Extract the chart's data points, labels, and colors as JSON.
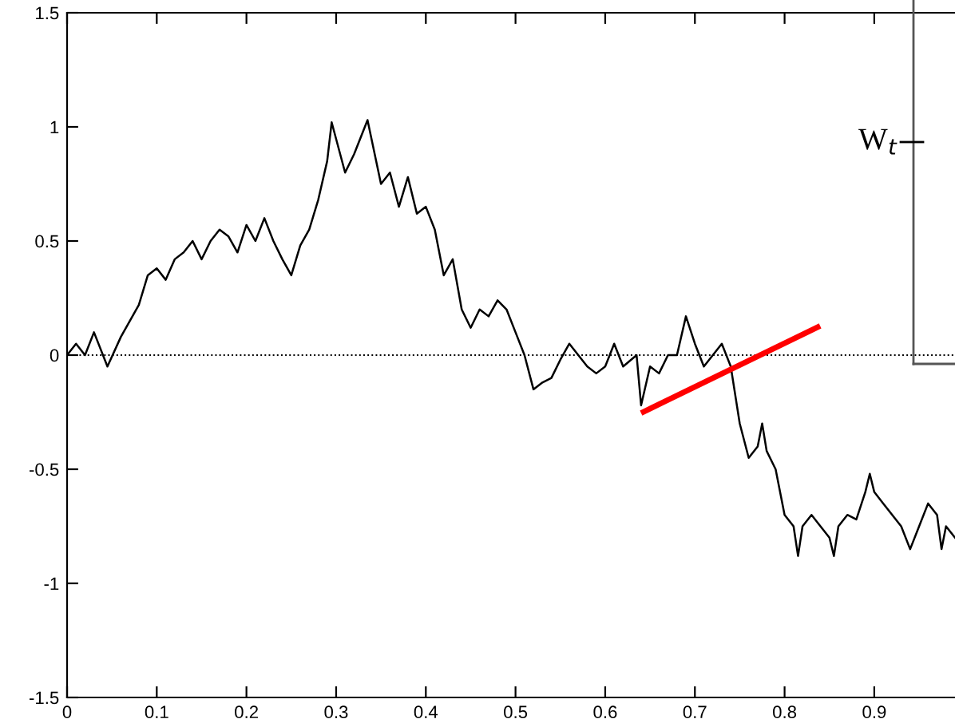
{
  "chart_data": {
    "type": "line",
    "xlim": [
      0,
      0.99
    ],
    "ylim": [
      -1.5,
      1.5
    ],
    "xticks": [
      0,
      0.1,
      0.2,
      0.3,
      0.4,
      0.5,
      0.6,
      0.7,
      0.8,
      0.9
    ],
    "yticks": [
      -1.5,
      -1,
      -0.5,
      0,
      0.5,
      1,
      1.5
    ],
    "grid": false,
    "legend": false,
    "marker": "none",
    "line_style": "solid",
    "ref_lines": [
      {
        "axis": "y",
        "value": 0,
        "line_style": "dotted",
        "color": "#000000"
      }
    ],
    "annotations": [
      "W$_{t}$"
    ],
    "series": [
      {
        "color": "#000000",
        "x": [
          0,
          0.01,
          0.02,
          0.03,
          0.045,
          0.06,
          0.07,
          0.08,
          0.09,
          0.1,
          0.11,
          0.12,
          0.13,
          0.14,
          0.15,
          0.16,
          0.17,
          0.18,
          0.19,
          0.2,
          0.21,
          0.22,
          0.23,
          0.24,
          0.25,
          0.26,
          0.27,
          0.28,
          0.29,
          0.295,
          0.31,
          0.32,
          0.335,
          0.35,
          0.36,
          0.37,
          0.38,
          0.39,
          0.4,
          0.41,
          0.42,
          0.43,
          0.44,
          0.45,
          0.46,
          0.47,
          0.48,
          0.49,
          0.5,
          0.51,
          0.52,
          0.53,
          0.54,
          0.55,
          0.56,
          0.57,
          0.58,
          0.59,
          0.6,
          0.61,
          0.62,
          0.635,
          0.64,
          0.65,
          0.66,
          0.67,
          0.68,
          0.69,
          0.7,
          0.71,
          0.72,
          0.73,
          0.74,
          0.75,
          0.76,
          0.77,
          0.775,
          0.78,
          0.79,
          0.8,
          0.81,
          0.815,
          0.82,
          0.83,
          0.84,
          0.85,
          0.855,
          0.86,
          0.87,
          0.88,
          0.89,
          0.895,
          0.9,
          0.91,
          0.92,
          0.93,
          0.94,
          0.95,
          0.96,
          0.97,
          0.975,
          0.98,
          0.99
        ],
        "values": [
          0,
          0.05,
          0,
          0.1,
          -0.05,
          0.08,
          0.15,
          0.22,
          0.35,
          0.38,
          0.33,
          0.42,
          0.45,
          0.5,
          0.42,
          0.5,
          0.55,
          0.52,
          0.45,
          0.57,
          0.5,
          0.6,
          0.5,
          0.42,
          0.35,
          0.48,
          0.55,
          0.68,
          0.85,
          1.02,
          0.8,
          0.88,
          1.03,
          0.75,
          0.8,
          0.65,
          0.78,
          0.62,
          0.65,
          0.55,
          0.35,
          0.42,
          0.2,
          0.12,
          0.2,
          0.17,
          0.24,
          0.2,
          0.1,
          0,
          -0.15,
          -0.12,
          -0.1,
          -0.02,
          0.05,
          0,
          -0.05,
          -0.08,
          -0.05,
          0.05,
          -0.05,
          0,
          -0.22,
          -0.05,
          -0.08,
          0,
          0,
          0.17,
          0.05,
          -0.05,
          0,
          0.05,
          -0.05,
          -0.3,
          -0.45,
          -0.4,
          -0.3,
          -0.42,
          -0.5,
          -0.7,
          -0.75,
          -0.88,
          -0.75,
          -0.7,
          -0.75,
          -0.8,
          -0.88,
          -0.75,
          -0.7,
          -0.72,
          -0.6,
          -0.52,
          -0.6,
          -0.65,
          -0.7,
          -0.75,
          -0.85,
          -0.75,
          -0.65,
          -0.7,
          -0.85,
          -0.75,
          -0.8
        ]
      }
    ]
  }
}
